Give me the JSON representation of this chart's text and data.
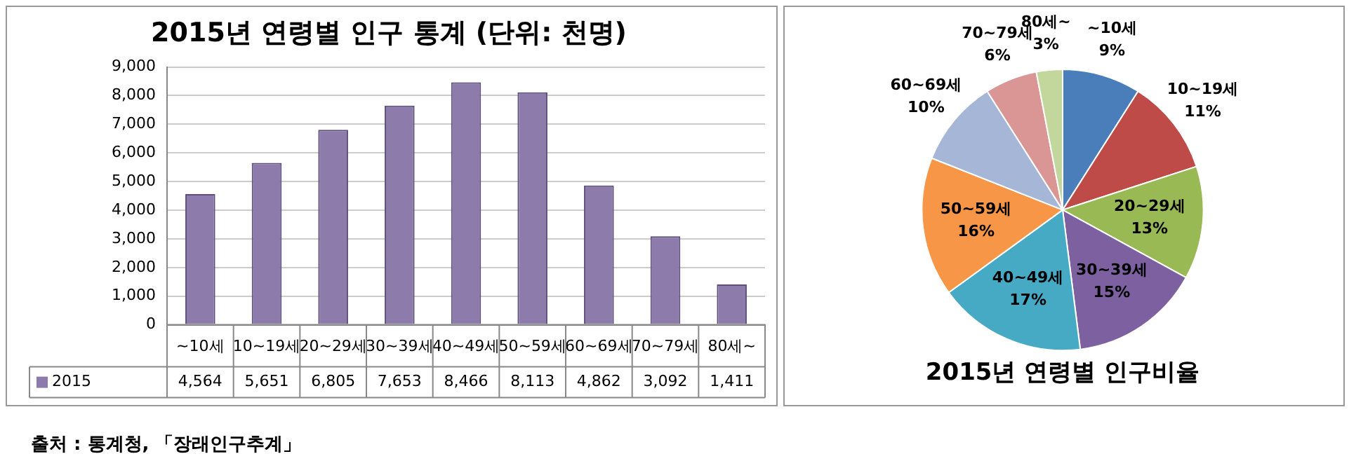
{
  "chart_data": [
    {
      "type": "bar",
      "title": "2015년 연령별 인구 통계 (단위: 천명)",
      "categories": [
        "~10세",
        "10~19세",
        "20~29세",
        "30~39세",
        "40~49세",
        "50~59세",
        "60~69세",
        "70~79세",
        "80세~"
      ],
      "series": [
        {
          "name": "2015",
          "color": "#8c7bab",
          "values": [
            4564,
            5651,
            6805,
            7653,
            8466,
            8113,
            4862,
            3092,
            1411
          ],
          "value_labels": [
            "4,564",
            "5,651",
            "6,805",
            "7,653",
            "8,466",
            "8,113",
            "4,862",
            "3,092",
            "1,411"
          ]
        }
      ],
      "ylim": [
        0,
        9000
      ],
      "yticks": [
        {
          "value": 0,
          "label": "0"
        },
        {
          "value": 1000,
          "label": "1,000"
        },
        {
          "value": 2000,
          "label": "2,000"
        },
        {
          "value": 3000,
          "label": "3,000"
        },
        {
          "value": 4000,
          "label": "4,000"
        },
        {
          "value": 5000,
          "label": "5,000"
        },
        {
          "value": 6000,
          "label": "6,000"
        },
        {
          "value": 7000,
          "label": "7,000"
        },
        {
          "value": 8000,
          "label": "8,000"
        },
        {
          "value": 9000,
          "label": "9,000"
        }
      ],
      "grid": "y",
      "legend": "bottom left",
      "annotations": [
        "출처 : 통계청, 「장래인구추계」"
      ]
    },
    {
      "type": "pie",
      "title": "2015년 연령별 인구비율",
      "categories": [
        "~10세",
        "10~19세",
        "20~29세",
        "30~39세",
        "40~49세",
        "50~59세",
        "60~69세",
        "70~79세",
        "80세~"
      ],
      "values": [
        9,
        11,
        13,
        15,
        17,
        16,
        10,
        6,
        3
      ],
      "value_labels": [
        "9%",
        "11%",
        "13%",
        "15%",
        "17%",
        "16%",
        "10%",
        "6%",
        "3%"
      ],
      "colors": [
        "#4a7ebb",
        "#be4b48",
        "#98b954",
        "#7d60a0",
        "#46aac5",
        "#f79646",
        "#a5b6d6",
        "#d99694",
        "#c3d69b"
      ],
      "legend": false
    }
  ]
}
